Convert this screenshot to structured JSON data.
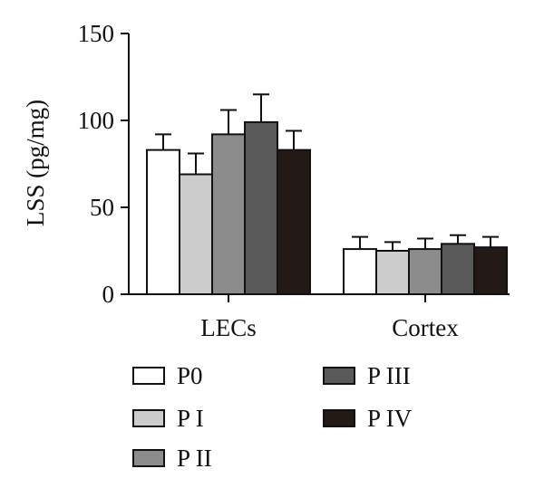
{
  "chart_data": {
    "type": "bar",
    "title": "",
    "xlabel": "",
    "ylabel": "LSS (pg/mg)",
    "ylim": [
      0,
      150
    ],
    "yticks": [
      0,
      50,
      100,
      150
    ],
    "grid": false,
    "legend_position": "bottom",
    "categories": [
      "LECs",
      "Cortex"
    ],
    "series": [
      {
        "name": "P0",
        "color": "#ffffff",
        "values": [
          83,
          26
        ],
        "errors": [
          9,
          7
        ]
      },
      {
        "name": "P I",
        "color": "#cccccc",
        "values": [
          69,
          25
        ],
        "errors": [
          12,
          5
        ]
      },
      {
        "name": "P II",
        "color": "#8c8c8c",
        "values": [
          92,
          26
        ],
        "errors": [
          14,
          6
        ]
      },
      {
        "name": "P III",
        "color": "#595959",
        "values": [
          99,
          29
        ],
        "errors": [
          16,
          5
        ]
      },
      {
        "name": "P IV",
        "color": "#231a17",
        "values": [
          83,
          27
        ],
        "errors": [
          11,
          6
        ]
      }
    ]
  }
}
